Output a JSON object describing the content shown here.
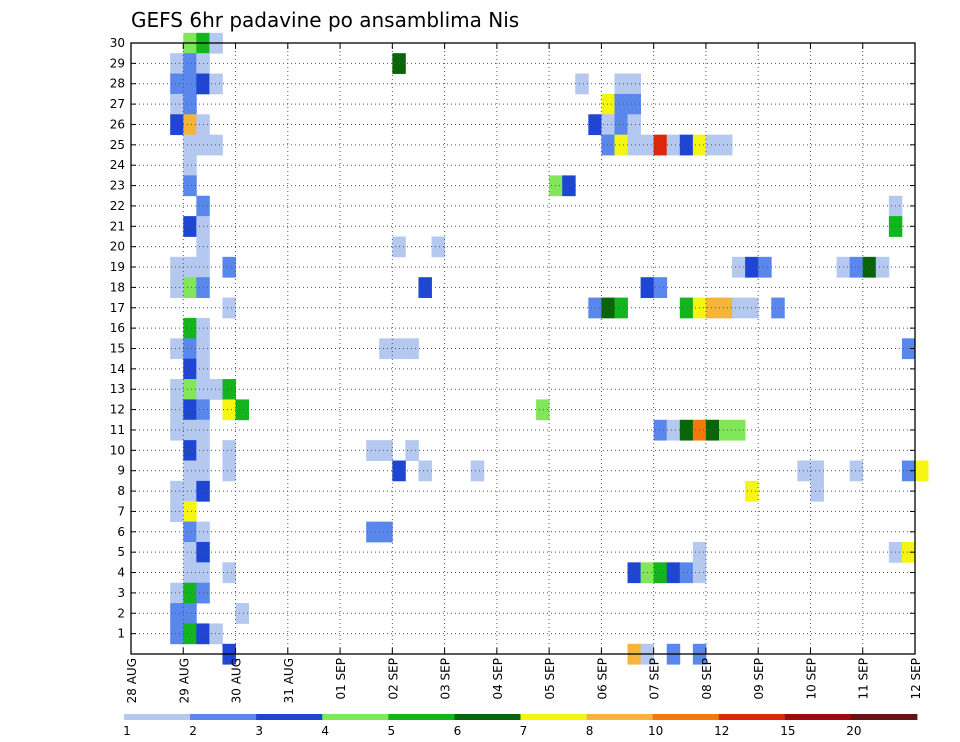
{
  "chart_data": {
    "type": "heatmap",
    "title": "GEFS 6hr padavine po ansamblima Nis",
    "xlabel": "",
    "ylabel": "",
    "x_ticks": [
      "28 AUG",
      "29 AUG",
      "30 AUG",
      "31 AUG",
      "01 SEP",
      "02 SEP",
      "03 SEP",
      "04 SEP",
      "05 SEP",
      "06 SEP",
      "07 SEP",
      "08 SEP",
      "09 SEP",
      "10 SEP",
      "11 SEP",
      "12 SEP"
    ],
    "y_ticks": [
      "1",
      "2",
      "3",
      "4",
      "5",
      "6",
      "7",
      "8",
      "9",
      "10",
      "11",
      "12",
      "13",
      "14",
      "15",
      "16",
      "17",
      "18",
      "19",
      "20",
      "21",
      "22",
      "23",
      "24",
      "25",
      "26",
      "27",
      "28",
      "29",
      "30"
    ],
    "grid": true,
    "legend": {
      "placement": "bottom",
      "labels": [
        "1",
        "2",
        "3",
        "4",
        "5",
        "6",
        "7",
        "8",
        "10",
        "12",
        "15",
        "20"
      ],
      "colors": [
        "#b4c8f0",
        "#5a87ec",
        "#1e46d2",
        "#82e65a",
        "#14b41e",
        "#0a640a",
        "#f5f514",
        "#f5b43c",
        "#f5780a",
        "#dc280a",
        "#a00a0a",
        "#641414"
      ]
    },
    "units": {
      "x": "6-hour steps from 28 AUG 00Z",
      "y": "ensemble member"
    },
    "cells": [
      [
        4,
        30,
        3
      ],
      [
        5,
        30,
        4
      ],
      [
        6,
        30,
        0
      ],
      [
        3,
        29,
        0
      ],
      [
        4,
        29,
        1
      ],
      [
        5,
        29,
        0
      ],
      [
        20,
        29,
        5
      ],
      [
        3,
        28,
        1
      ],
      [
        4,
        28,
        1
      ],
      [
        5,
        28,
        2
      ],
      [
        6,
        28,
        0
      ],
      [
        34,
        28,
        0
      ],
      [
        37,
        28,
        0
      ],
      [
        38,
        28,
        0
      ],
      [
        3,
        27,
        0
      ],
      [
        4,
        27,
        1
      ],
      [
        36,
        27,
        6
      ],
      [
        37,
        27,
        1
      ],
      [
        38,
        27,
        1
      ],
      [
        3,
        26,
        2
      ],
      [
        4,
        26,
        7
      ],
      [
        5,
        26,
        0
      ],
      [
        35,
        26,
        2
      ],
      [
        36,
        26,
        0
      ],
      [
        37,
        26,
        1
      ],
      [
        38,
        26,
        0
      ],
      [
        4,
        25,
        0
      ],
      [
        5,
        25,
        0
      ],
      [
        6,
        25,
        0
      ],
      [
        36,
        25,
        1
      ],
      [
        37,
        25,
        6
      ],
      [
        38,
        25,
        0
      ],
      [
        39,
        25,
        0
      ],
      [
        40,
        25,
        9
      ],
      [
        41,
        25,
        0
      ],
      [
        42,
        25,
        2
      ],
      [
        43,
        25,
        6
      ],
      [
        44,
        25,
        0
      ],
      [
        45,
        25,
        0
      ],
      [
        4,
        24,
        0
      ],
      [
        4,
        23,
        1
      ],
      [
        32,
        23,
        3
      ],
      [
        33,
        23,
        2
      ],
      [
        5,
        22,
        1
      ],
      [
        58,
        22,
        0
      ],
      [
        4,
        21,
        2
      ],
      [
        5,
        21,
        0
      ],
      [
        58,
        21,
        4
      ],
      [
        5,
        20,
        0
      ],
      [
        20,
        20,
        0
      ],
      [
        23,
        20,
        0
      ],
      [
        3,
        19,
        0
      ],
      [
        4,
        19,
        0
      ],
      [
        5,
        19,
        0
      ],
      [
        7,
        19,
        1
      ],
      [
        46,
        19,
        0
      ],
      [
        47,
        19,
        2
      ],
      [
        48,
        19,
        1
      ],
      [
        54,
        19,
        0
      ],
      [
        55,
        19,
        1
      ],
      [
        56,
        19,
        5
      ],
      [
        57,
        19,
        0
      ],
      [
        3,
        18,
        0
      ],
      [
        4,
        18,
        3
      ],
      [
        5,
        18,
        1
      ],
      [
        22,
        18,
        2
      ],
      [
        39,
        18,
        2
      ],
      [
        40,
        18,
        1
      ],
      [
        7,
        17,
        0
      ],
      [
        35,
        17,
        1
      ],
      [
        36,
        17,
        5
      ],
      [
        37,
        17,
        4
      ],
      [
        42,
        17,
        4
      ],
      [
        43,
        17,
        6
      ],
      [
        44,
        17,
        7
      ],
      [
        45,
        17,
        7
      ],
      [
        46,
        17,
        0
      ],
      [
        47,
        17,
        0
      ],
      [
        49,
        17,
        1
      ],
      [
        4,
        16,
        4
      ],
      [
        5,
        16,
        0
      ],
      [
        3,
        15,
        0
      ],
      [
        4,
        15,
        1
      ],
      [
        5,
        15,
        0
      ],
      [
        19,
        15,
        0
      ],
      [
        20,
        15,
        0
      ],
      [
        21,
        15,
        0
      ],
      [
        59,
        15,
        1
      ],
      [
        4,
        14,
        2
      ],
      [
        5,
        14,
        0
      ],
      [
        3,
        13,
        0
      ],
      [
        4,
        13,
        3
      ],
      [
        5,
        13,
        0
      ],
      [
        6,
        13,
        0
      ],
      [
        7,
        13,
        4
      ],
      [
        3,
        12,
        0
      ],
      [
        4,
        12,
        2
      ],
      [
        5,
        12,
        1
      ],
      [
        7,
        12,
        6
      ],
      [
        8,
        12,
        4
      ],
      [
        31,
        12,
        3
      ],
      [
        3,
        11,
        0
      ],
      [
        4,
        11,
        0
      ],
      [
        5,
        11,
        0
      ],
      [
        40,
        11,
        1
      ],
      [
        41,
        11,
        0
      ],
      [
        42,
        11,
        5
      ],
      [
        43,
        11,
        8
      ],
      [
        44,
        11,
        5
      ],
      [
        45,
        11,
        3
      ],
      [
        46,
        11,
        3
      ],
      [
        4,
        10,
        2
      ],
      [
        5,
        10,
        0
      ],
      [
        7,
        10,
        0
      ],
      [
        18,
        10,
        0
      ],
      [
        19,
        10,
        0
      ],
      [
        21,
        10,
        0
      ],
      [
        4,
        9,
        0
      ],
      [
        5,
        9,
        0
      ],
      [
        7,
        9,
        0
      ],
      [
        20,
        9,
        2
      ],
      [
        22,
        9,
        0
      ],
      [
        26,
        9,
        0
      ],
      [
        51,
        9,
        0
      ],
      [
        52,
        9,
        0
      ],
      [
        55,
        9,
        0
      ],
      [
        59,
        9,
        1
      ],
      [
        60,
        9,
        6
      ],
      [
        3,
        8,
        0
      ],
      [
        4,
        8,
        0
      ],
      [
        5,
        8,
        2
      ],
      [
        47,
        8,
        6
      ],
      [
        52,
        8,
        0
      ],
      [
        3,
        7,
        0
      ],
      [
        4,
        7,
        6
      ],
      [
        4,
        6,
        1
      ],
      [
        5,
        6,
        0
      ],
      [
        18,
        6,
        1
      ],
      [
        19,
        6,
        1
      ],
      [
        4,
        5,
        0
      ],
      [
        5,
        5,
        2
      ],
      [
        43,
        5,
        0
      ],
      [
        58,
        5,
        0
      ],
      [
        59,
        5,
        6
      ],
      [
        4,
        4,
        0
      ],
      [
        5,
        4,
        0
      ],
      [
        7,
        4,
        0
      ],
      [
        38,
        4,
        2
      ],
      [
        39,
        4,
        3
      ],
      [
        40,
        4,
        4
      ],
      [
        41,
        4,
        2
      ],
      [
        42,
        4,
        1
      ],
      [
        43,
        4,
        0
      ],
      [
        3,
        3,
        0
      ],
      [
        4,
        3,
        4
      ],
      [
        5,
        3,
        1
      ],
      [
        3,
        2,
        1
      ],
      [
        4,
        2,
        1
      ],
      [
        8,
        2,
        0
      ],
      [
        3,
        1,
        1
      ],
      [
        4,
        1,
        4
      ],
      [
        5,
        1,
        2
      ],
      [
        6,
        1,
        0
      ],
      [
        7,
        0,
        2
      ],
      [
        38,
        0,
        7
      ],
      [
        39,
        0,
        0
      ],
      [
        41,
        0,
        1
      ],
      [
        43,
        0,
        1
      ]
    ]
  }
}
